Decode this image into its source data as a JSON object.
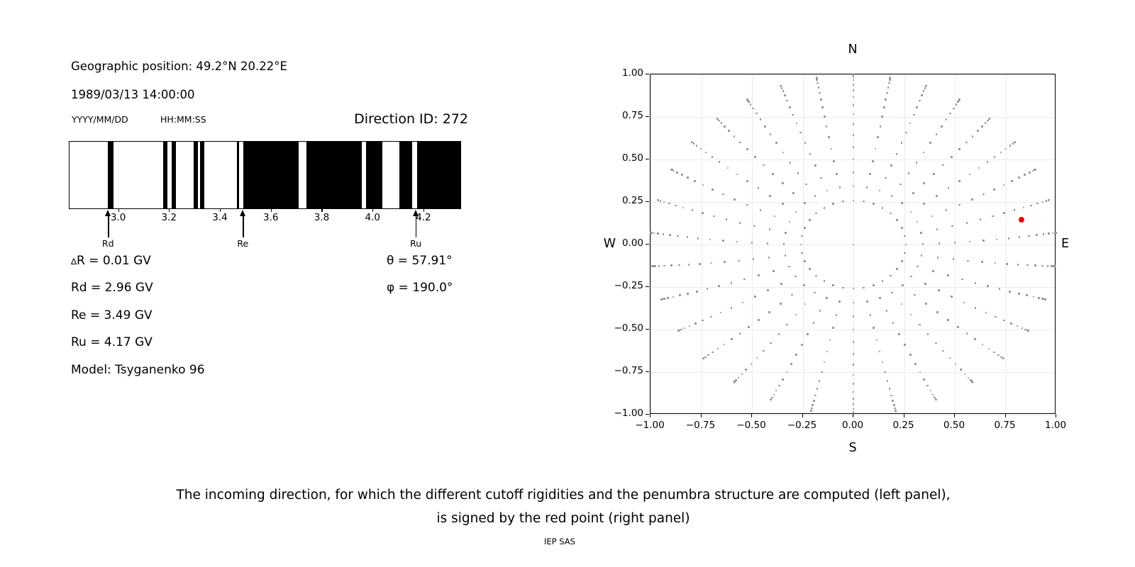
{
  "page": {
    "caption_line1": "The incoming direction, for which the different cutoff rigidities and the penumbra structure are computed (left panel),",
    "caption_line2": "is signed by the red point (right panel)",
    "credit": "IEP SAS"
  },
  "left_panel": {
    "geographic_position": "Geographic position: 49.2°N 20.22°E",
    "datetime": "1989/03/13 14:00:00",
    "date_format_label": "YYYY/MM/DD",
    "time_format_label": "HH:MM:SS",
    "direction_id": "Direction ID: 272",
    "stats": {
      "delta_symbol": "∆",
      "delta_r_rest": "R = 0.01 GV",
      "rd": "Rd = 2.96 GV",
      "re": "Re = 3.49 GV",
      "ru": "Ru = 4.17 GV",
      "model": "Model: Tsyganenko 96",
      "theta": "θ = 57.91°",
      "phi": "φ = 190.0°"
    }
  },
  "chart_data": [
    {
      "type": "bar",
      "name": "penumbra-structure",
      "description": "Cutoff rigidity penumbra: black bands = allowed trajectories, white = forbidden",
      "xlim": [
        2.806,
        4.348
      ],
      "x_ticks": [
        3.0,
        3.2,
        3.4,
        3.6,
        3.8,
        4.0,
        4.2
      ],
      "x_tick_labels": [
        "3.0",
        "3.2",
        "3.4",
        "3.6",
        "3.8",
        "4.0",
        "4.2"
      ],
      "bar_color": "#000000",
      "allowed_segments_gv": [
        [
          2.958,
          2.979
        ],
        [
          3.175,
          3.191
        ],
        [
          3.21,
          3.227
        ],
        [
          3.296,
          3.313
        ],
        [
          3.32,
          3.337
        ],
        [
          3.466,
          3.474
        ],
        [
          3.491,
          3.709
        ],
        [
          3.742,
          3.958
        ],
        [
          3.976,
          4.04
        ],
        [
          4.107,
          4.158
        ],
        [
          4.176,
          4.348
        ]
      ],
      "arrows": [
        {
          "label": "Rd",
          "value_gv": 2.96
        },
        {
          "label": "Re",
          "value_gv": 3.49
        },
        {
          "label": "Ru",
          "value_gv": 4.17
        }
      ]
    },
    {
      "type": "scatter",
      "name": "incoming-direction-grid",
      "compass": {
        "top": "N",
        "bottom": "S",
        "left": "W",
        "right": "E"
      },
      "xlim": [
        -1.0,
        1.0
      ],
      "ylim": [
        -1.0,
        1.0
      ],
      "x_ticks": [
        -1.0,
        -0.75,
        -0.5,
        -0.25,
        0.0,
        0.25,
        0.5,
        0.75,
        1.0
      ],
      "y_ticks": [
        -1.0,
        -0.75,
        -0.5,
        -0.25,
        0.0,
        0.25,
        0.5,
        0.75,
        1.0
      ],
      "x_tick_labels": [
        "-1.00",
        "-0.75",
        "-0.50",
        "-0.25",
        "0.00",
        "0.25",
        "0.50",
        "0.75",
        "1.00"
      ],
      "y_tick_labels": [
        "-1.00",
        "-0.75",
        "-0.50",
        "-0.25",
        "0.00",
        "0.25",
        "0.50",
        "0.75",
        "1.00"
      ],
      "grid": true,
      "dot_color": "#8f8f8f",
      "direction_grid": {
        "azimuth_count": 32,
        "azimuth_step_deg": 11.25,
        "zenith_start_deg": 15,
        "zenith_step_deg": 5,
        "zenith_end_deg": 90,
        "radius_mapping": "r = sin(zenith)",
        "drift_toward_north_deg": 4,
        "center_dot": true
      },
      "red_point": {
        "x": 0.83,
        "y": 0.145,
        "color": "#ee0000",
        "theta_deg": 57.91,
        "phi_deg": 190.0
      }
    }
  ]
}
